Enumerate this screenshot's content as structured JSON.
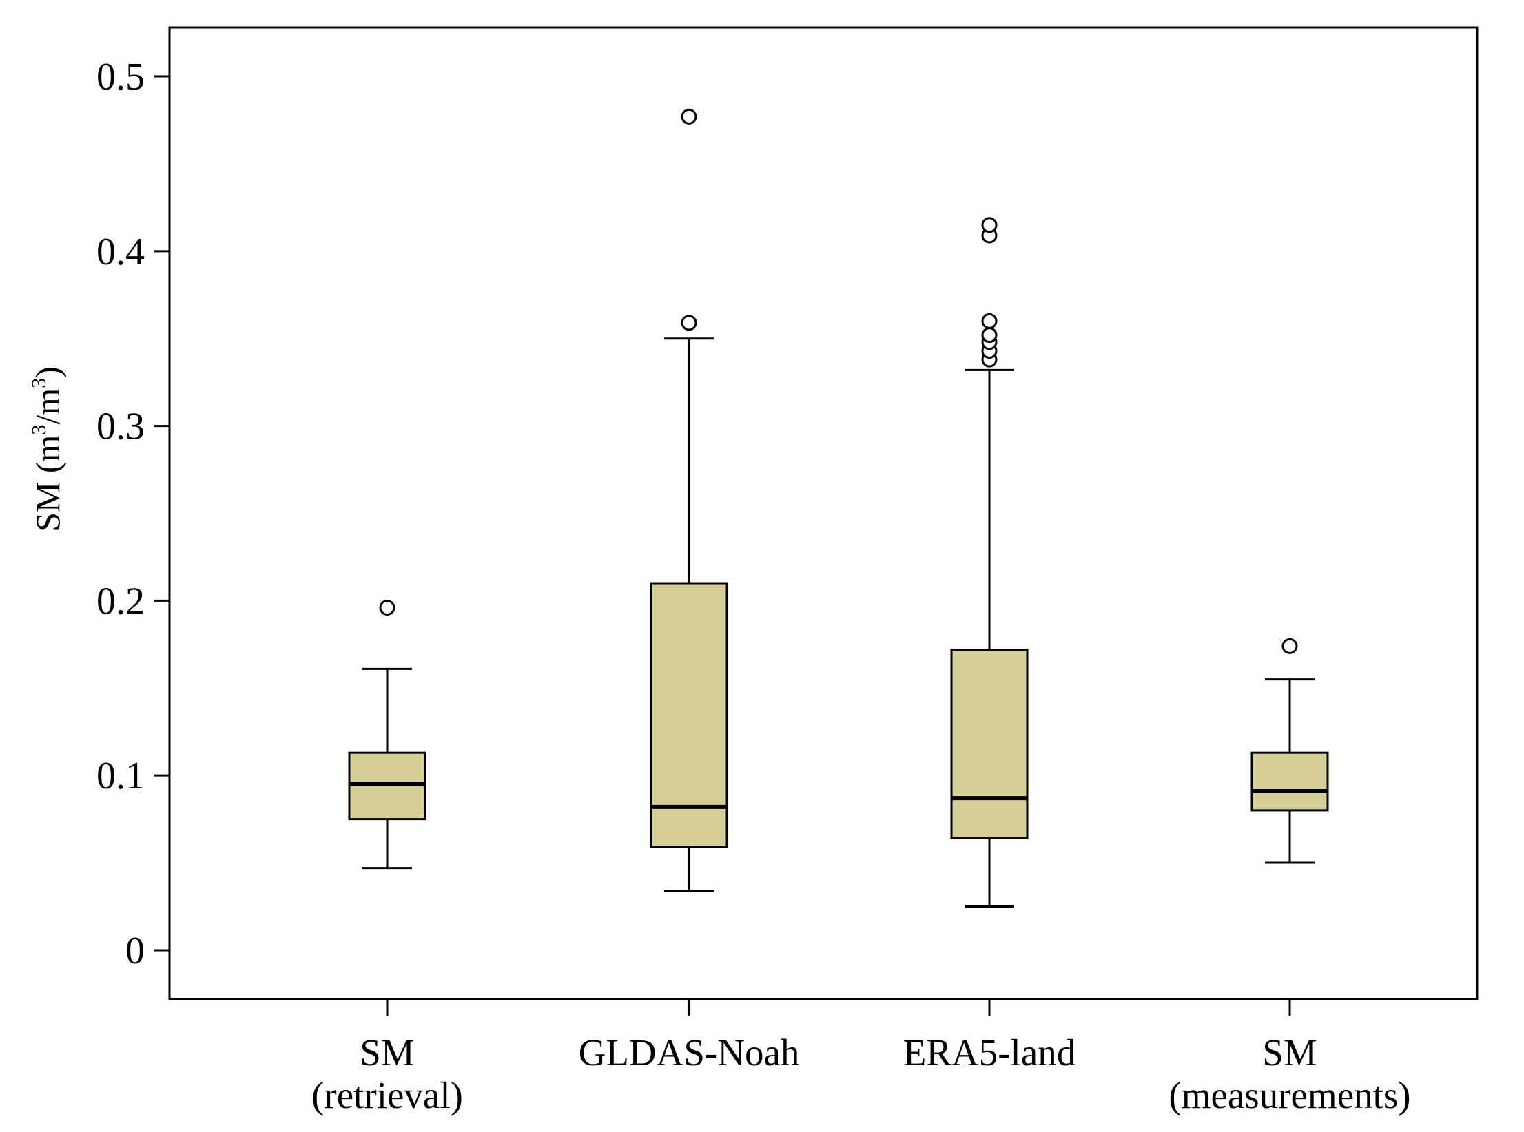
{
  "chart_data": {
    "type": "box",
    "title": "",
    "xlabel": "",
    "ylabel": {
      "prefix": "SM (m",
      "sup1": "3",
      "mid": "/m",
      "sup2": "3",
      "suffix": ")"
    },
    "ylim": [
      -0.028,
      0.528
    ],
    "yticks": [
      0,
      0.1,
      0.2,
      0.3,
      0.4,
      0.5
    ],
    "ytick_labels": [
      "0",
      "0.1",
      "0.2",
      "0.3",
      "0.4",
      "0.5"
    ],
    "grid": false,
    "box_color": "#d6cf97",
    "line_color": "#000000",
    "series": [
      {
        "name": "SM (retrieval)",
        "label_lines": [
          "SM",
          "(retrieval)"
        ],
        "whisker_low": 0.047,
        "q1": 0.075,
        "median": 0.095,
        "q3": 0.113,
        "whisker_high": 0.161,
        "outliers": [
          0.196
        ]
      },
      {
        "name": "GLDAS-Noah",
        "label_lines": [
          "GLDAS-Noah"
        ],
        "whisker_low": 0.034,
        "q1": 0.059,
        "median": 0.082,
        "q3": 0.21,
        "whisker_high": 0.35,
        "outliers": [
          0.359,
          0.477
        ]
      },
      {
        "name": "ERA5-land",
        "label_lines": [
          "ERA5-land"
        ],
        "whisker_low": 0.025,
        "q1": 0.064,
        "median": 0.087,
        "q3": 0.172,
        "whisker_high": 0.332,
        "outliers": [
          0.338,
          0.343,
          0.348,
          0.352,
          0.36,
          0.409,
          0.415
        ]
      },
      {
        "name": "SM (measurements)",
        "label_lines": [
          "SM",
          "(measurements)"
        ],
        "whisker_low": 0.05,
        "q1": 0.08,
        "median": 0.091,
        "q3": 0.113,
        "whisker_high": 0.155,
        "outliers": [
          0.174
        ]
      }
    ]
  }
}
